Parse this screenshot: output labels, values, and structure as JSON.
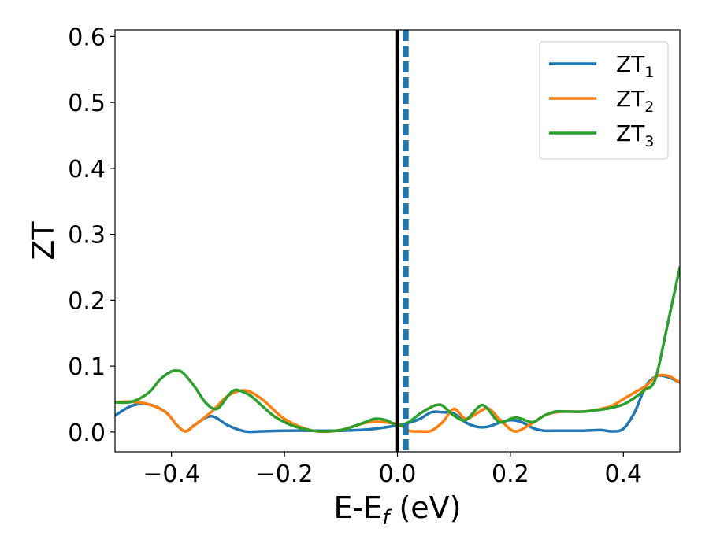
{
  "chart_data": {
    "type": "line",
    "xlabel": "E-E",
    "xlabel_sub": "f",
    "xlabel_unit": " (eV)",
    "ylabel": "ZT",
    "xlim": [
      -0.5,
      0.5
    ],
    "ylim": [
      -0.03,
      0.61
    ],
    "xticks": [
      -0.4,
      -0.2,
      0.0,
      0.2,
      0.4
    ],
    "xtick_labels": [
      "−0.4",
      "−0.2",
      "0.0",
      "0.2",
      "0.4"
    ],
    "yticks": [
      0.0,
      0.1,
      0.2,
      0.3,
      0.4,
      0.5,
      0.6
    ],
    "ytick_labels": [
      "0.0",
      "0.1",
      "0.2",
      "0.3",
      "0.4",
      "0.5",
      "0.6"
    ],
    "grid": false,
    "legend_position": "top-right",
    "reference_lines": [
      {
        "x": 0.0,
        "style": "solid",
        "color": "#000000"
      },
      {
        "x": 0.015,
        "style": "dashed",
        "color": "#1f77b4"
      }
    ],
    "series": [
      {
        "name": "ZT",
        "name_sub": "1",
        "color": "#1f77b4",
        "x": [
          -0.5,
          -0.47,
          -0.44,
          -0.41,
          -0.39,
          -0.375,
          -0.36,
          -0.33,
          -0.3,
          -0.27,
          -0.24,
          -0.2,
          -0.15,
          -0.1,
          -0.05,
          0.0,
          0.02,
          0.04,
          0.06,
          0.08,
          0.1,
          0.12,
          0.14,
          0.16,
          0.18,
          0.2,
          0.22,
          0.24,
          0.26,
          0.28,
          0.3,
          0.33,
          0.36,
          0.38,
          0.4,
          0.42,
          0.44,
          0.46,
          0.48,
          0.5
        ],
        "y": [
          0.025,
          0.04,
          0.042,
          0.03,
          0.01,
          0.001,
          0.01,
          0.024,
          0.01,
          0.001,
          0.001,
          0.002,
          0.002,
          0.002,
          0.004,
          0.01,
          0.014,
          0.02,
          0.03,
          0.03,
          0.028,
          0.015,
          0.008,
          0.008,
          0.014,
          0.018,
          0.015,
          0.006,
          0.002,
          0.002,
          0.002,
          0.002,
          0.003,
          0.001,
          0.005,
          0.03,
          0.07,
          0.085,
          0.083,
          0.075
        ]
      },
      {
        "name": "ZT",
        "name_sub": "2",
        "color": "#ff7f0e",
        "x": [
          -0.5,
          -0.47,
          -0.44,
          -0.41,
          -0.39,
          -0.375,
          -0.36,
          -0.33,
          -0.3,
          -0.27,
          -0.24,
          -0.2,
          -0.15,
          -0.1,
          -0.05,
          0.0,
          0.02,
          0.04,
          0.06,
          0.08,
          0.1,
          0.12,
          0.14,
          0.16,
          0.18,
          0.2,
          0.21,
          0.22,
          0.24,
          0.26,
          0.28,
          0.3,
          0.33,
          0.36,
          0.38,
          0.4,
          0.42,
          0.44,
          0.46,
          0.48,
          0.5
        ],
        "y": [
          0.045,
          0.046,
          0.042,
          0.03,
          0.01,
          0.001,
          0.01,
          0.03,
          0.055,
          0.063,
          0.05,
          0.02,
          0.002,
          0.003,
          0.015,
          0.012,
          0.002,
          0.001,
          0.002,
          0.015,
          0.035,
          0.02,
          0.028,
          0.036,
          0.02,
          0.004,
          0.001,
          0.004,
          0.014,
          0.025,
          0.03,
          0.031,
          0.031,
          0.035,
          0.04,
          0.05,
          0.06,
          0.07,
          0.085,
          0.085,
          0.075
        ]
      },
      {
        "name": "ZT",
        "name_sub": "3",
        "color": "#2ca02c",
        "x": [
          -0.5,
          -0.47,
          -0.44,
          -0.42,
          -0.4,
          -0.39,
          -0.38,
          -0.36,
          -0.34,
          -0.32,
          -0.3,
          -0.29,
          -0.28,
          -0.26,
          -0.24,
          -0.22,
          -0.2,
          -0.18,
          -0.15,
          -0.13,
          -0.1,
          -0.08,
          -0.06,
          -0.04,
          -0.02,
          0.0,
          0.02,
          0.04,
          0.06,
          0.07,
          0.08,
          0.1,
          0.12,
          0.14,
          0.15,
          0.16,
          0.18,
          0.2,
          0.21,
          0.22,
          0.24,
          0.26,
          0.28,
          0.3,
          0.33,
          0.36,
          0.38,
          0.4,
          0.42,
          0.44,
          0.45,
          0.46,
          0.48,
          0.5
        ],
        "y": [
          0.045,
          0.046,
          0.06,
          0.08,
          0.092,
          0.093,
          0.09,
          0.07,
          0.045,
          0.035,
          0.055,
          0.063,
          0.063,
          0.055,
          0.04,
          0.025,
          0.015,
          0.008,
          0.002,
          0.001,
          0.003,
          0.008,
          0.014,
          0.02,
          0.018,
          0.01,
          0.015,
          0.028,
          0.038,
          0.041,
          0.04,
          0.025,
          0.018,
          0.035,
          0.041,
          0.035,
          0.015,
          0.02,
          0.022,
          0.02,
          0.015,
          0.025,
          0.031,
          0.031,
          0.031,
          0.034,
          0.037,
          0.042,
          0.052,
          0.065,
          0.07,
          0.09,
          0.17,
          0.25
        ]
      }
    ]
  }
}
